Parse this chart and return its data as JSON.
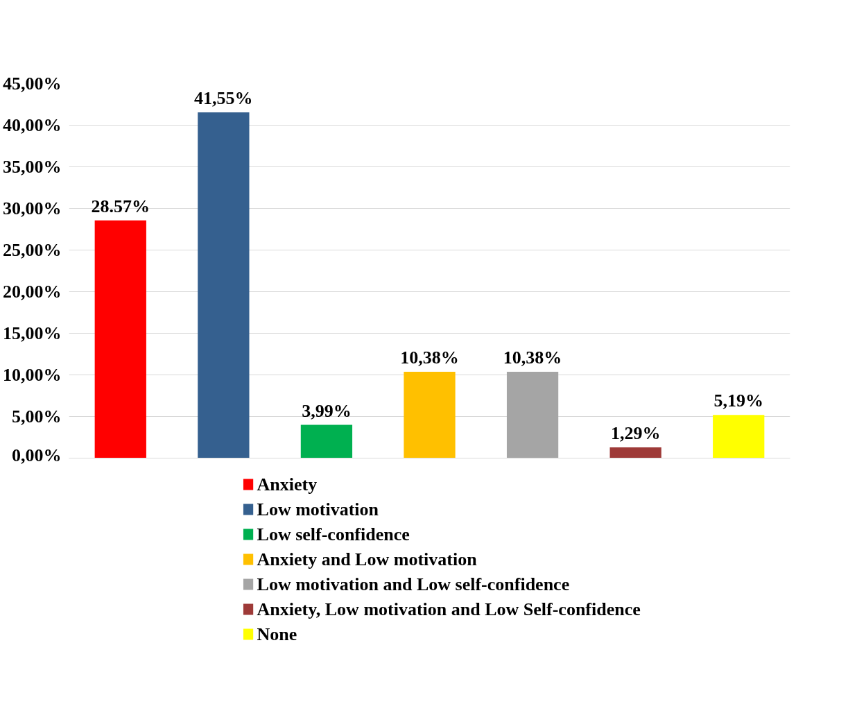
{
  "chart_data": {
    "type": "bar",
    "categories": [
      null,
      null,
      null,
      null,
      null,
      null,
      null
    ],
    "ylim": [
      0,
      45
    ],
    "yticks": [
      {
        "value": 0,
        "label": "0,00%"
      },
      {
        "value": 5,
        "label": "5,00%"
      },
      {
        "value": 10,
        "label": "10,00%"
      },
      {
        "value": 15,
        "label": "15,00%"
      },
      {
        "value": 20,
        "label": "20,00%"
      },
      {
        "value": 25,
        "label": "25,00%"
      },
      {
        "value": 30,
        "label": "30,00%"
      },
      {
        "value": 35,
        "label": "35,00%"
      },
      {
        "value": 40,
        "label": "40,00%"
      },
      {
        "value": 45,
        "label": "45,00%"
      }
    ],
    "grid": "y",
    "legend": "bottom",
    "series": [
      {
        "name": "Anxiety",
        "color": "#ff0000",
        "values": [
          28.57,
          null,
          null,
          null,
          null,
          null,
          null
        ],
        "value_labels": [
          "28.57%",
          null,
          null,
          null,
          null,
          null,
          null
        ]
      },
      {
        "name": "Low motivation",
        "color": "#35608f",
        "values": [
          null,
          41.55,
          null,
          null,
          null,
          null,
          null
        ],
        "value_labels": [
          null,
          "41,55%",
          null,
          null,
          null,
          null,
          null
        ]
      },
      {
        "name": "Low self-confidence",
        "color": "#00b050",
        "values": [
          null,
          null,
          3.99,
          null,
          null,
          null,
          null
        ],
        "value_labels": [
          null,
          null,
          "3,99%",
          null,
          null,
          null,
          null
        ]
      },
      {
        "name": "Anxiety and Low motivation",
        "color": "#ffc000",
        "values": [
          null,
          null,
          null,
          10.38,
          null,
          null,
          null
        ],
        "value_labels": [
          null,
          null,
          null,
          "10,38%",
          null,
          null,
          null
        ]
      },
      {
        "name": "Low motivation and Low self-confidence",
        "color": "#a5a5a5",
        "values": [
          null,
          null,
          null,
          null,
          10.38,
          null,
          null
        ],
        "value_labels": [
          null,
          null,
          null,
          null,
          "10,38%",
          null,
          null
        ]
      },
      {
        "name": "Anxiety, Low motivation and Low Self-confidence",
        "color": "#9e3a38",
        "values": [
          null,
          null,
          null,
          null,
          null,
          1.29,
          null
        ],
        "value_labels": [
          null,
          null,
          null,
          null,
          null,
          "1,29%",
          null
        ]
      },
      {
        "name": "None",
        "color": "#ffff00",
        "values": [
          null,
          null,
          null,
          null,
          null,
          null,
          5.19
        ],
        "value_labels": [
          null,
          null,
          null,
          null,
          null,
          null,
          "5,19%"
        ]
      }
    ]
  }
}
